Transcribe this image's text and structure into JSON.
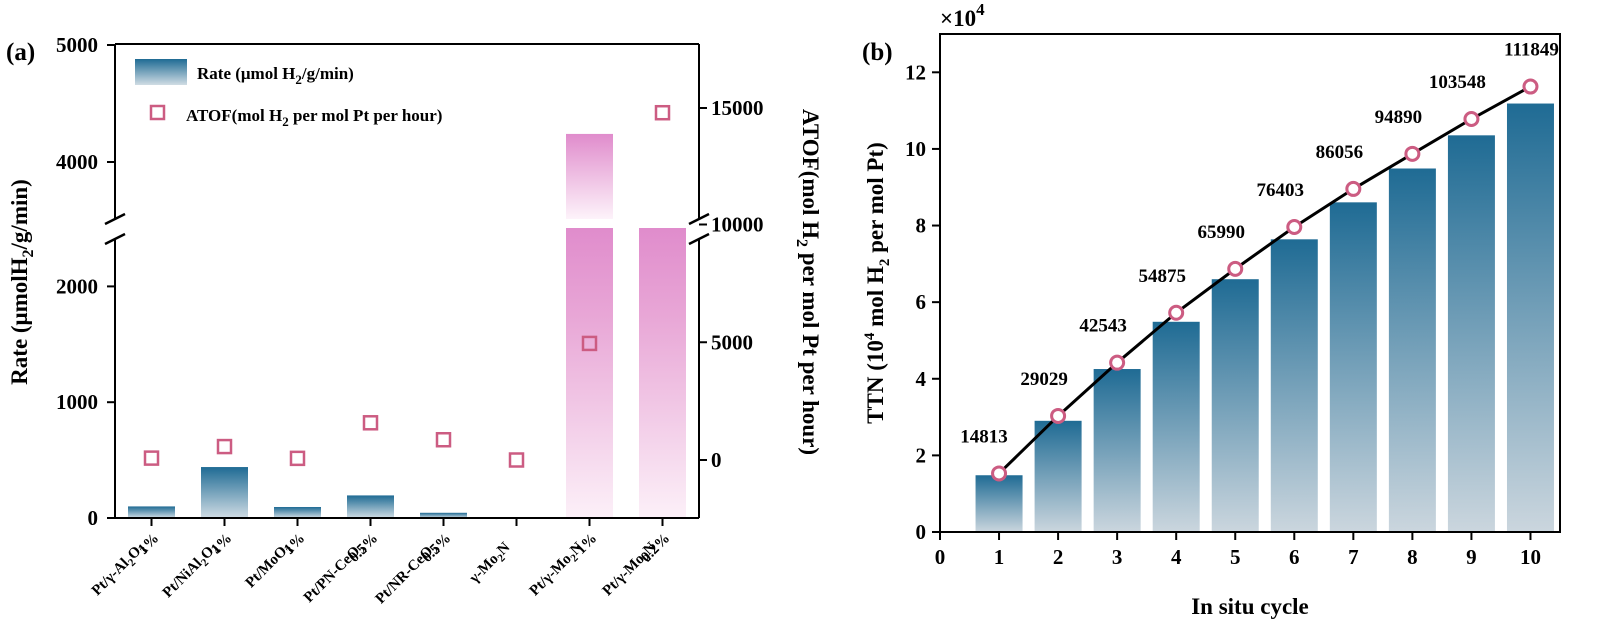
{
  "chart_data": [
    {
      "panel": "(a)",
      "type": "bar",
      "categories": [
        [
          "1%",
          "Pt/γ-Al₂O₃"
        ],
        [
          "1%",
          "Pt/NiAl₂O₄"
        ],
        [
          "1%",
          "Pt/MoO₃"
        ],
        [
          "0.5%",
          "Pt/PN-CeO₂"
        ],
        [
          "0.5%",
          "Pt/NR-CeO₂"
        ],
        [
          "",
          "γ-Mo₂N"
        ],
        [
          "1%",
          "Pt/γ-Mo₂N"
        ],
        [
          "0.2%",
          "Pt/γ-Mo₂N"
        ]
      ],
      "series": [
        {
          "name": "Rate (μmol H₂/g/min)",
          "axis": "left",
          "values": [
            100,
            440,
            95,
            195,
            45,
            0,
            4240,
            2500
          ],
          "color_dark": "#1f6b94",
          "color_pink": "#e08ccc"
        },
        {
          "name": "ATOF(mol H₂ per mol Pt per hour)",
          "axis": "right",
          "values": [
            80,
            570,
            70,
            1580,
            860,
            0,
            4950,
            14800
          ],
          "marker": "square",
          "color": "#cc5c82"
        }
      ],
      "ylabel": "Rate (μmolH₂/g/min)",
      "y2label": "ATOF(mol H₂ per mol Pt per hour)",
      "y_ticks": [
        0,
        1000,
        2000,
        4000,
        5000
      ],
      "y_break": [
        2500,
        3500
      ],
      "y2_ticks": [
        0,
        5000,
        10000,
        15000
      ],
      "y2_break": 10000,
      "legend_position": "top-left"
    },
    {
      "panel": "(b)",
      "type": "bar",
      "x": [
        1,
        2,
        3,
        4,
        5,
        6,
        7,
        8,
        9,
        10
      ],
      "values": [
        14813,
        29029,
        42543,
        54875,
        65990,
        76403,
        86056,
        94890,
        103548,
        111849
      ],
      "point_values": [
        15280,
        30290,
        44200,
        57230,
        68690,
        79620,
        89560,
        98720,
        107810,
        116280
      ],
      "data_labels": [
        "14813",
        "29029",
        "42543",
        "54875",
        "65990",
        "76403",
        "86056",
        "94890",
        "103548",
        "111849"
      ],
      "xlabel": "In situ cycle",
      "ylabel": "TTN (10⁴ mol H₂ per mol Pt)",
      "scale_label": "×10⁴",
      "x_ticks": [
        0,
        1,
        2,
        3,
        4,
        5,
        6,
        7,
        8,
        9,
        10
      ],
      "y_ticks": [
        0,
        2,
        4,
        6,
        8,
        10,
        12
      ],
      "xlim": [
        0,
        10.5
      ],
      "ylim": [
        0,
        130000
      ],
      "bar_color": "#1f6b94",
      "marker_color": "#cc5c82"
    }
  ]
}
